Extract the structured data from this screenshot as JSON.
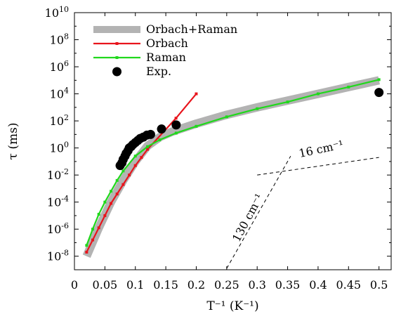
{
  "chart_data": {
    "type": "line",
    "xlabel": "T⁻¹ (K⁻¹)",
    "ylabel": "τ (ms)",
    "xlim": [
      0,
      0.52
    ],
    "ylim": [
      -9,
      10
    ],
    "yscale": "log",
    "x_ticks": [
      0,
      0.05,
      0.1,
      0.15,
      0.2,
      0.25,
      0.3,
      0.35,
      0.4,
      0.45,
      0.5
    ],
    "x_tick_labels": [
      "0",
      "0.05",
      "0.1",
      "0.15",
      "0.2",
      "0.25",
      "0.3",
      "0.35",
      "0.4",
      "0.45",
      "0.5"
    ],
    "y_tick_exponents": [
      -8,
      -6,
      -4,
      -2,
      0,
      2,
      4,
      6,
      8,
      10
    ],
    "legend_position": "top-left",
    "series": [
      {
        "name": "Orbach+Raman",
        "color": "#b3b3b3",
        "style": "band",
        "x": [
          0.02,
          0.04,
          0.06,
          0.08,
          0.1,
          0.12,
          0.14,
          0.16,
          0.2,
          0.25,
          0.3,
          0.35,
          0.4,
          0.45,
          0.5
        ],
        "log10_y": [
          -8.0,
          -5.9,
          -4.0,
          -2.4,
          -1.0,
          0.15,
          0.8,
          1.2,
          1.8,
          2.45,
          3.0,
          3.5,
          4.0,
          4.5,
          5.0
        ]
      },
      {
        "name": "Orbach",
        "color": "#e8141c",
        "style": "line-markers",
        "x": [
          0.02,
          0.03,
          0.04,
          0.05,
          0.06,
          0.07,
          0.08,
          0.09,
          0.1,
          0.11,
          0.12,
          0.1667,
          0.2
        ],
        "log10_y": [
          -7.7,
          -6.8,
          -5.9,
          -5.0,
          -4.1,
          -3.4,
          -2.7,
          -2.0,
          -1.3,
          -0.7,
          -0.1,
          2.2,
          4.0
        ]
      },
      {
        "name": "Raman",
        "color": "#20d81c",
        "style": "line-markers",
        "x": [
          0.02,
          0.03,
          0.04,
          0.05,
          0.06,
          0.07,
          0.08,
          0.1,
          0.12,
          0.14,
          0.167,
          0.2,
          0.25,
          0.3,
          0.35,
          0.4,
          0.45,
          0.5
        ],
        "log10_y": [
          -7.2,
          -6.0,
          -4.9,
          -4.0,
          -3.2,
          -2.4,
          -1.7,
          -0.6,
          0.1,
          0.6,
          1.1,
          1.6,
          2.3,
          2.9,
          3.4,
          4.0,
          4.5,
          5.05
        ]
      },
      {
        "name": "Exp.",
        "color": "#000000",
        "style": "scatter",
        "x": [
          0.075,
          0.078,
          0.08,
          0.083,
          0.085,
          0.088,
          0.09,
          0.093,
          0.096,
          0.1,
          0.104,
          0.108,
          0.113,
          0.119,
          0.125,
          0.143,
          0.167,
          0.5
        ],
        "log10_y": [
          -1.3,
          -1.1,
          -0.85,
          -0.6,
          -0.4,
          -0.2,
          0.0,
          0.1,
          0.25,
          0.4,
          0.55,
          0.7,
          0.8,
          0.95,
          1.0,
          1.4,
          1.7,
          4.1
        ]
      }
    ],
    "annotations": [
      {
        "text": "16 cm⁻¹",
        "x": 0.37,
        "log10_y": -0.7,
        "rotation_deg": -12
      },
      {
        "text": "130 cm⁻¹",
        "x": 0.27,
        "log10_y": -7.0,
        "rotation_deg": -62
      }
    ],
    "guide_lines": [
      {
        "style": "dashed",
        "x": [
          0.3,
          0.5
        ],
        "log10_y": [
          -2.0,
          -0.7
        ]
      },
      {
        "style": "dashed",
        "x": [
          0.25,
          0.355
        ],
        "log10_y": [
          -8.9,
          -0.6
        ]
      }
    ]
  }
}
